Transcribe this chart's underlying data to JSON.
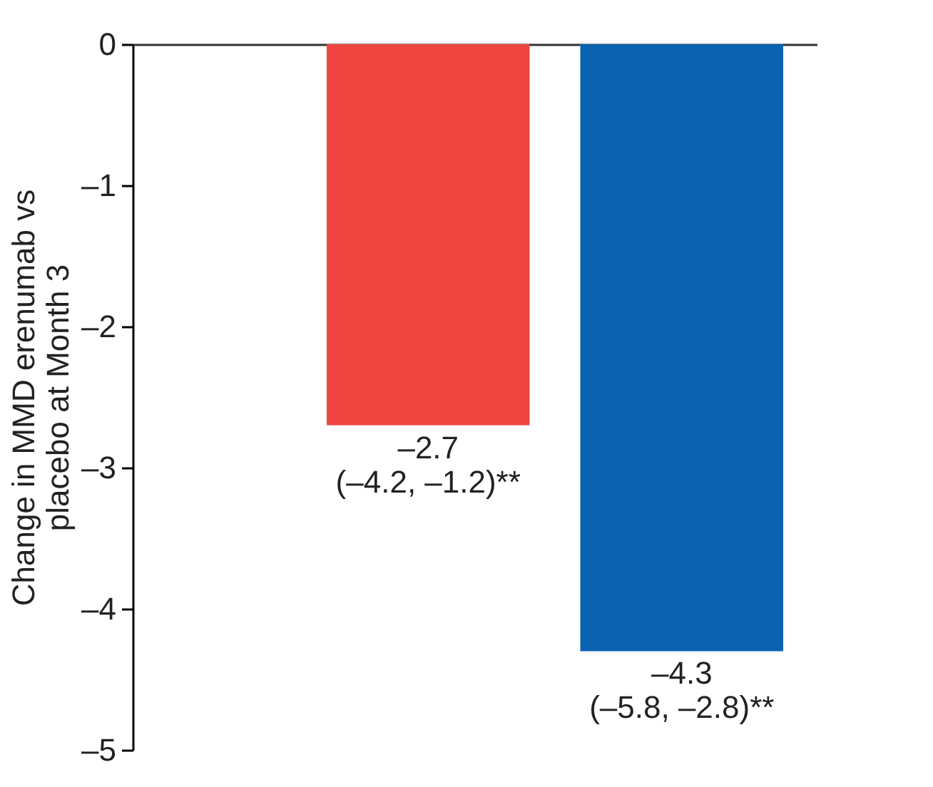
{
  "chart_data": {
    "type": "bar",
    "ylabel": "Change in MMD erenumab vs\nplacebo at Month 3",
    "categories": [
      null,
      null
    ],
    "values": [
      -2.7,
      -4.3
    ],
    "colors": [
      "#ee4540",
      "#0a62b0"
    ],
    "value_labels": [
      "–2.7\n(–4.2, –1.2)**",
      "–4.3\n(–5.8, –2.8)**"
    ],
    "ylim": [
      -5,
      0
    ],
    "yticks": [
      {
        "value": 0,
        "label": "0"
      },
      {
        "value": -1,
        "label": "–1"
      },
      {
        "value": -2,
        "label": "–2"
      },
      {
        "value": -3,
        "label": "–3"
      },
      {
        "value": -4,
        "label": "–4"
      },
      {
        "value": -5,
        "label": "–5"
      }
    ],
    "grid": false
  }
}
